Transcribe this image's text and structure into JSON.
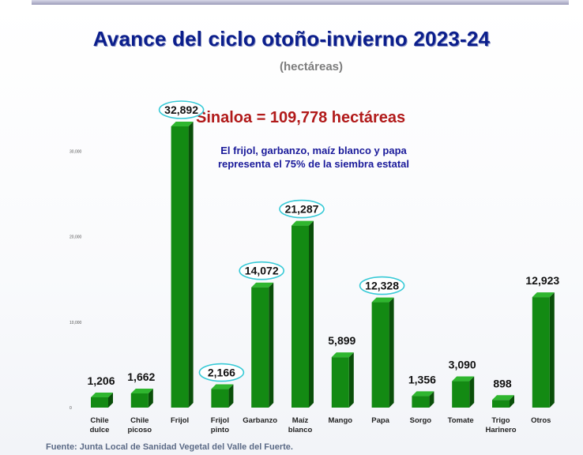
{
  "chart_data": {
    "type": "bar",
    "title": "Avance del ciclo otoño-invierno 2023-24",
    "subtitle": "(hectáreas)",
    "headline": "Sinaloa = 109,778 hectáreas",
    "note_lines": [
      "El frijol, garbanzo, maíz blanco y papa",
      "representa el 75% de la siembra estatal"
    ],
    "source": "Fuente: Junta Local de Sanidad Vegetal del Valle del Fuerte.",
    "categories": [
      [
        "Chile",
        "dulce"
      ],
      [
        "Chile",
        "picoso"
      ],
      [
        "Frijol"
      ],
      [
        "Frijol",
        "pinto"
      ],
      [
        "Garbanzo"
      ],
      [
        "Maíz",
        "blanco"
      ],
      [
        "Mango"
      ],
      [
        "Papa"
      ],
      [
        "Sorgo"
      ],
      [
        "Tomate"
      ],
      [
        "Trigo",
        "Harinero"
      ],
      [
        "Otros"
      ]
    ],
    "values": [
      1206,
      1662,
      32892,
      2166,
      14072,
      21287,
      5899,
      12328,
      1356,
      3090,
      898,
      12923
    ],
    "value_labels": [
      "1,206",
      "1,662",
      "32,892",
      "2,166",
      "14,072",
      "21,287",
      "5,899",
      "12,328",
      "1,356",
      "3,090",
      "898",
      "12,923"
    ],
    "highlighted": [
      false,
      false,
      true,
      true,
      true,
      true,
      false,
      true,
      false,
      false,
      false,
      false
    ],
    "y_ticks": [
      0,
      10000,
      20000,
      30000
    ],
    "y_tick_labels": [
      "0",
      "10,000",
      "20,000",
      "30,000"
    ],
    "ylim": [
      0,
      32892
    ],
    "xlabel": "",
    "ylabel": "",
    "grid": false,
    "legend": "none",
    "colors": {
      "bar_front": "#138a13",
      "bar_side": "#0a4f0a",
      "bar_top": "#2fb62f",
      "highlight_ring": "#36c9d6",
      "title": "#0b1e8c",
      "headline": "#b11a1a"
    }
  }
}
